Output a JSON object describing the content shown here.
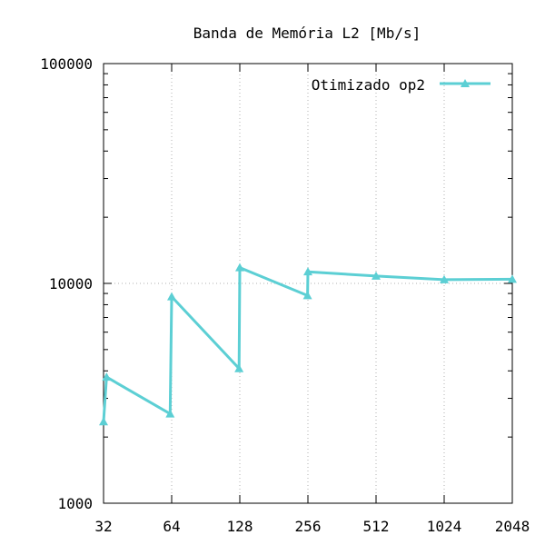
{
  "chart_data": {
    "type": "line",
    "title": "Banda de Memória L2 [Mb/s]",
    "xlabel": "",
    "ylabel": "",
    "x_scale": "log2",
    "y_scale": "log10",
    "xlim": [
      32,
      2048
    ],
    "ylim": [
      1000,
      100000
    ],
    "x_ticks": [
      32,
      64,
      128,
      256,
      512,
      1024,
      2048
    ],
    "x_tick_labels": [
      "32",
      "64",
      "128",
      "256",
      "512",
      "1024",
      "2048"
    ],
    "y_ticks": [
      1000,
      10000,
      100000
    ],
    "y_tick_labels": [
      "1000",
      "10000",
      "100000"
    ],
    "grid": "x-only, dotted",
    "legend_position": "top-right",
    "series": [
      {
        "name": "Otimizado op2",
        "color": "#5ccfd4",
        "marker": "triangle",
        "points": [
          {
            "x": 32,
            "y": 2350
          },
          {
            "x": 33,
            "y": 3750
          },
          {
            "x": 63,
            "y": 2550
          },
          {
            "x": 64,
            "y": 8700
          },
          {
            "x": 127,
            "y": 4100
          },
          {
            "x": 128,
            "y": 11800
          },
          {
            "x": 255,
            "y": 8800
          },
          {
            "x": 256,
            "y": 11300
          },
          {
            "x": 512,
            "y": 10800
          },
          {
            "x": 1024,
            "y": 10400
          },
          {
            "x": 2048,
            "y": 10450
          }
        ]
      }
    ]
  }
}
